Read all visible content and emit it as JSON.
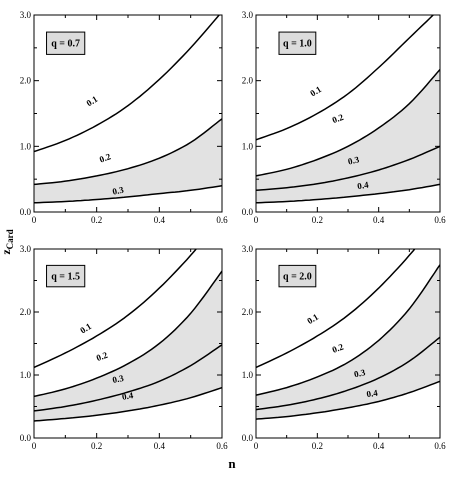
{
  "chart_data": [
    {
      "type": "line",
      "panel_label": "q = 0.7",
      "xlim": [
        0,
        0.6
      ],
      "ylim": [
        0,
        3.0
      ],
      "xticks": [
        "0",
        "0.2",
        "0.4",
        "0.6"
      ],
      "yticks": [
        "0.0",
        "1.0",
        "2.0",
        "3.0"
      ],
      "shaded_between": [
        "0.2",
        "0.3"
      ],
      "series": [
        {
          "name": "0.1",
          "x": [
            0,
            0.1,
            0.2,
            0.3,
            0.4,
            0.5,
            0.6
          ],
          "y": [
            0.92,
            1.09,
            1.32,
            1.62,
            2.02,
            2.5,
            3.05
          ]
        },
        {
          "name": "0.2",
          "x": [
            0,
            0.1,
            0.2,
            0.3,
            0.4,
            0.5,
            0.6
          ],
          "y": [
            0.42,
            0.47,
            0.55,
            0.66,
            0.82,
            1.06,
            1.42
          ]
        },
        {
          "name": "0.3",
          "x": [
            0,
            0.1,
            0.2,
            0.3,
            0.4,
            0.5,
            0.6
          ],
          "y": [
            0.14,
            0.16,
            0.19,
            0.23,
            0.28,
            0.33,
            0.4
          ]
        }
      ]
    },
    {
      "type": "line",
      "panel_label": "q = 1.0",
      "xlim": [
        0,
        0.6
      ],
      "ylim": [
        0,
        3.0
      ],
      "xticks": [
        "0",
        "0.2",
        "0.4",
        "0.6"
      ],
      "yticks": [
        "0.0",
        "1.0",
        "2.0",
        "3.0"
      ],
      "shaded_between": [
        "0.2",
        "0.4"
      ],
      "series": [
        {
          "name": "0.1",
          "x": [
            0,
            0.1,
            0.2,
            0.3,
            0.4,
            0.5,
            0.6
          ],
          "y": [
            1.1,
            1.27,
            1.5,
            1.8,
            2.2,
            2.65,
            3.1
          ]
        },
        {
          "name": "0.2",
          "x": [
            0,
            0.1,
            0.2,
            0.3,
            0.4,
            0.5,
            0.6
          ],
          "y": [
            0.55,
            0.65,
            0.8,
            1.0,
            1.28,
            1.65,
            2.17
          ]
        },
        {
          "name": "0.3",
          "x": [
            0,
            0.1,
            0.2,
            0.3,
            0.4,
            0.5,
            0.6
          ],
          "y": [
            0.33,
            0.37,
            0.43,
            0.52,
            0.64,
            0.8,
            1.0
          ]
        },
        {
          "name": "0.4",
          "x": [
            0,
            0.1,
            0.2,
            0.3,
            0.4,
            0.5,
            0.6
          ],
          "y": [
            0.14,
            0.16,
            0.19,
            0.23,
            0.28,
            0.34,
            0.42
          ]
        }
      ]
    },
    {
      "type": "line",
      "panel_label": "q = 1.5",
      "xlim": [
        0,
        0.6
      ],
      "ylim": [
        0,
        3.0
      ],
      "xticks": [
        "0",
        "0.2",
        "0.4",
        "0.6"
      ],
      "yticks": [
        "0.0",
        "1.0",
        "2.0",
        "3.0"
      ],
      "shaded_between": [
        "0.2",
        "0.4"
      ],
      "series": [
        {
          "name": "0.1",
          "x": [
            0,
            0.1,
            0.2,
            0.3,
            0.4,
            0.5,
            0.6
          ],
          "y": [
            1.12,
            1.35,
            1.62,
            1.95,
            2.38,
            2.9,
            3.5
          ]
        },
        {
          "name": "0.2",
          "x": [
            0,
            0.1,
            0.2,
            0.3,
            0.4,
            0.5,
            0.6
          ],
          "y": [
            0.66,
            0.78,
            0.95,
            1.18,
            1.5,
            1.98,
            2.65
          ]
        },
        {
          "name": "0.3",
          "x": [
            0,
            0.1,
            0.2,
            0.3,
            0.4,
            0.5,
            0.6
          ],
          "y": [
            0.43,
            0.5,
            0.6,
            0.73,
            0.9,
            1.15,
            1.48
          ]
        },
        {
          "name": "0.4",
          "x": [
            0,
            0.1,
            0.2,
            0.3,
            0.4,
            0.5,
            0.6
          ],
          "y": [
            0.27,
            0.31,
            0.36,
            0.43,
            0.52,
            0.64,
            0.8
          ]
        }
      ]
    },
    {
      "type": "line",
      "panel_label": "q = 2.0",
      "xlim": [
        0,
        0.6
      ],
      "ylim": [
        0,
        3.0
      ],
      "xticks": [
        "0",
        "0.2",
        "0.4",
        "0.6"
      ],
      "yticks": [
        "0.0",
        "1.0",
        "2.0",
        "3.0"
      ],
      "shaded_between": [
        "0.2",
        "0.4"
      ],
      "series": [
        {
          "name": "0.1",
          "x": [
            0,
            0.1,
            0.2,
            0.3,
            0.4,
            0.5,
            0.6
          ],
          "y": [
            1.12,
            1.35,
            1.62,
            1.95,
            2.38,
            2.9,
            3.5
          ]
        },
        {
          "name": "0.2",
          "x": [
            0,
            0.1,
            0.2,
            0.3,
            0.4,
            0.5,
            0.6
          ],
          "y": [
            0.68,
            0.8,
            0.97,
            1.2,
            1.55,
            2.05,
            2.75
          ]
        },
        {
          "name": "0.3",
          "x": [
            0,
            0.1,
            0.2,
            0.3,
            0.4,
            0.5,
            0.6
          ],
          "y": [
            0.45,
            0.52,
            0.62,
            0.76,
            0.95,
            1.22,
            1.6
          ]
        },
        {
          "name": "0.4",
          "x": [
            0,
            0.1,
            0.2,
            0.3,
            0.4,
            0.5,
            0.6
          ],
          "y": [
            0.3,
            0.34,
            0.4,
            0.48,
            0.58,
            0.72,
            0.9
          ]
        }
      ]
    }
  ],
  "axes": {
    "xlabel": "n",
    "ylabel_main": "z",
    "ylabel_sub": "Card"
  },
  "colors": {
    "shade": "#e2e2e2",
    "line": "#000000",
    "label_box": "#dcdcdc"
  }
}
